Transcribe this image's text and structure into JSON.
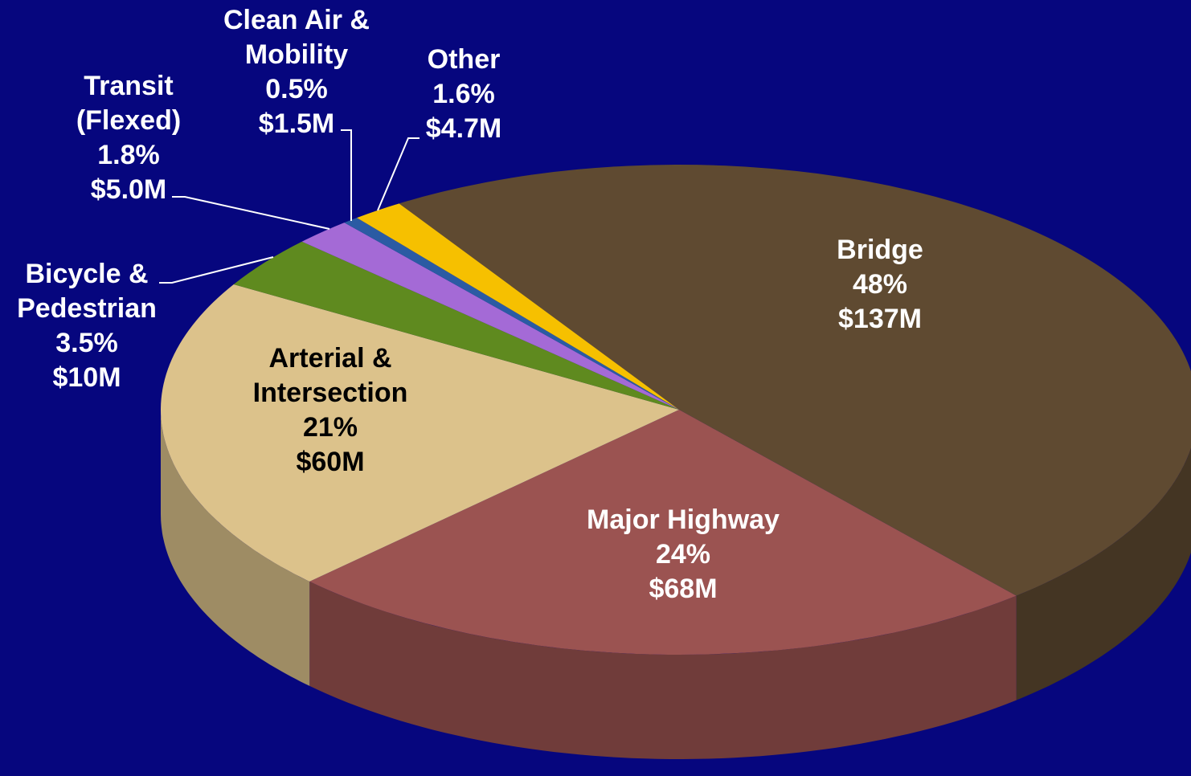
{
  "chart_data": {
    "type": "pie",
    "categories": [
      "Bridge",
      "Major Highway",
      "Arterial & Intersection",
      "Bicycle & Pedestrian",
      "Transit (Flexed)",
      "Clean Air & Mobility",
      "Other"
    ],
    "values": [
      48,
      24,
      21,
      3.5,
      1.8,
      0.5,
      1.6
    ],
    "value_labels": [
      "48%",
      "24%",
      "21%",
      "3.5%",
      "1.8%",
      "0.5%",
      "1.6%"
    ],
    "amount_labels": [
      "$137M",
      "$68M",
      "$60M",
      "$10M",
      "$5.0M",
      "$1.5M",
      "$4.7M"
    ],
    "colors": [
      "#5f4a31",
      "#9b5351",
      "#dcc28b",
      "#5f8a1f",
      "#a46ad6",
      "#2b5ba3",
      "#f6c000"
    ]
  }
}
